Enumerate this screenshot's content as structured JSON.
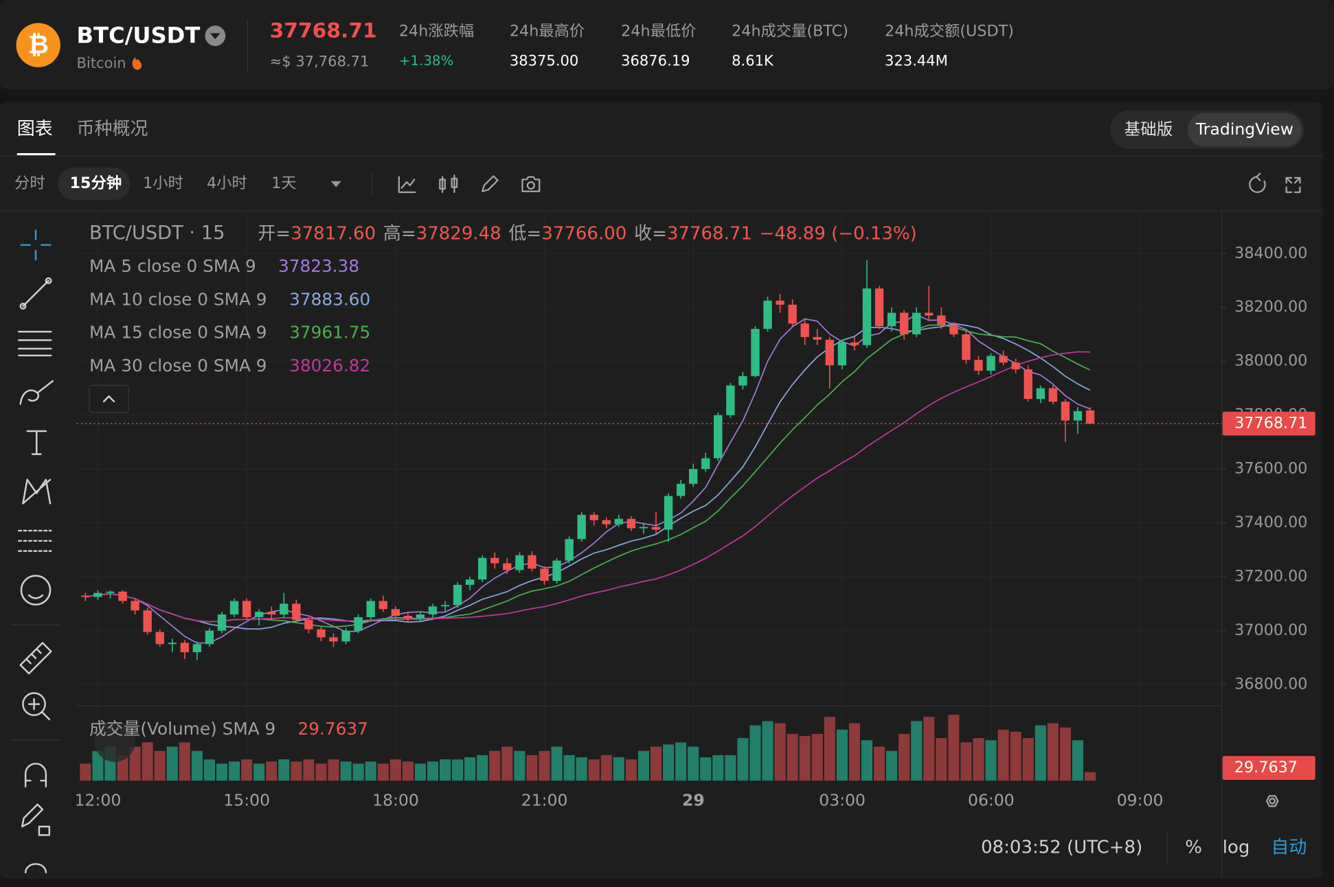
{
  "header": {
    "logo": "₿",
    "symbol": "BTC/USDT",
    "name": "Bitcoin",
    "price": "37768.71",
    "price_usd": "≈$ 37,768.71",
    "stats": [
      {
        "label": "24h涨跌幅",
        "value": "+1.38%"
      },
      {
        "label": "24h最高价",
        "value": "38375.00"
      },
      {
        "label": "24h最低价",
        "value": "36876.19"
      },
      {
        "label": "24h成交量(BTC)",
        "value": "8.61K"
      },
      {
        "label": "24h成交额(USDT)",
        "value": "323.44M"
      }
    ]
  },
  "tabs": [
    "图表",
    "币种概况"
  ],
  "views": [
    "基础版",
    "TradingView"
  ],
  "intervals": [
    "分时",
    "15分钟",
    "1小时",
    "4小时",
    "1天"
  ],
  "footer": {
    "time": "08:03:52 (UTC+8)",
    "percent": "%",
    "log": "log",
    "auto": "自动"
  },
  "chart_data": {
    "type": "candlestick",
    "symbol_label": "BTC/USDT · 15",
    "ohlc_prefixes": [
      "开=",
      "高=",
      "低=",
      "收="
    ],
    "last_labels": [
      "37817.60",
      "37829.48",
      "37766.00",
      "37768.71"
    ],
    "change_label": "−48.89 (−0.13%)",
    "ma": [
      {
        "name": "MA 5 close 0 SMA 9",
        "period": 5,
        "color": "#a07ad8",
        "value": "37823.38"
      },
      {
        "name": "MA 10 close 0 SMA 9",
        "period": 10,
        "color": "#8aa8e0",
        "value": "37883.60"
      },
      {
        "name": "MA 15 close 0 SMA 9",
        "period": 15,
        "color": "#4caf50",
        "value": "37961.75"
      },
      {
        "name": "MA 30 close 0 SMA 9",
        "period": 30,
        "color": "#c2389e",
        "value": "38026.82"
      }
    ],
    "volume_label": "成交量(Volume) SMA 9",
    "volume_sma": 29.7637,
    "up_color": "#2ebd85",
    "down_color": "#ef5350",
    "up_volume_color": "#22806a",
    "down_volume_color": "#8e3a3a",
    "grid": true,
    "ylim": [
      36721,
      38558
    ],
    "yticks": [
      {
        "value": 38400,
        "label": "38400.00"
      },
      {
        "value": 38200,
        "label": "38200.00"
      },
      {
        "value": 38000,
        "label": "38000.00"
      },
      {
        "value": 37800,
        "label": "37800.00"
      },
      {
        "value": 37600,
        "label": "37600.00"
      },
      {
        "value": 37400,
        "label": "37400.00"
      },
      {
        "value": 37200,
        "label": "37200.00"
      },
      {
        "value": 37000,
        "label": "37000.00"
      },
      {
        "value": 36800,
        "label": "36800.00"
      }
    ],
    "vlim": [
      0,
      160
    ],
    "xtick_labels": [
      "12:00",
      "15:00",
      "18:00",
      "21:00",
      "29",
      "03:00",
      "06:00",
      "09:00"
    ],
    "candles": [
      [
        37130,
        37140,
        37110,
        37125
      ],
      [
        37125,
        37150,
        37115,
        37140
      ],
      [
        37140,
        37150,
        37120,
        37145
      ],
      [
        37145,
        37150,
        37100,
        37110
      ],
      [
        37110,
        37120,
        37060,
        37075
      ],
      [
        37075,
        37085,
        36985,
        36995
      ],
      [
        36995,
        37005,
        36940,
        36950
      ],
      [
        36950,
        36970,
        36920,
        36955
      ],
      [
        36955,
        36965,
        36895,
        36920
      ],
      [
        36920,
        36960,
        36890,
        36950
      ],
      [
        36950,
        37010,
        36940,
        37000
      ],
      [
        37000,
        37070,
        36990,
        37060
      ],
      [
        37060,
        37120,
        37050,
        37110
      ],
      [
        37110,
        37120,
        37040,
        37050
      ],
      [
        37050,
        37080,
        37020,
        37070
      ],
      [
        37070,
        37090,
        37040,
        37060
      ],
      [
        37060,
        37140,
        37050,
        37100
      ],
      [
        37100,
        37115,
        37030,
        37040
      ],
      [
        37040,
        37050,
        36990,
        37005
      ],
      [
        37005,
        37015,
        36960,
        36975
      ],
      [
        36975,
        36990,
        36940,
        36960
      ],
      [
        36960,
        37010,
        36950,
        37000
      ],
      [
        37000,
        37060,
        36990,
        37050
      ],
      [
        37050,
        37120,
        37040,
        37110
      ],
      [
        37110,
        37130,
        37070,
        37080
      ],
      [
        37080,
        37090,
        37040,
        37055
      ],
      [
        37055,
        37070,
        37030,
        37045
      ],
      [
        37045,
        37070,
        37035,
        37060
      ],
      [
        37060,
        37100,
        37050,
        37090
      ],
      [
        37090,
        37110,
        37070,
        37095
      ],
      [
        37095,
        37180,
        37085,
        37170
      ],
      [
        37170,
        37200,
        37150,
        37190
      ],
      [
        37190,
        37280,
        37180,
        37270
      ],
      [
        37270,
        37290,
        37230,
        37250
      ],
      [
        37250,
        37270,
        37210,
        37225
      ],
      [
        37225,
        37290,
        37215,
        37280
      ],
      [
        37280,
        37295,
        37220,
        37230
      ],
      [
        37230,
        37240,
        37170,
        37185
      ],
      [
        37185,
        37270,
        37175,
        37260
      ],
      [
        37260,
        37350,
        37250,
        37340
      ],
      [
        37340,
        37440,
        37330,
        37430
      ],
      [
        37430,
        37440,
        37390,
        37410
      ],
      [
        37410,
        37420,
        37380,
        37395
      ],
      [
        37395,
        37430,
        37385,
        37415
      ],
      [
        37415,
        37425,
        37370,
        37380
      ],
      [
        37380,
        37400,
        37360,
        37385
      ],
      [
        37385,
        37440,
        37360,
        37375
      ],
      [
        37375,
        37510,
        37330,
        37500
      ],
      [
        37500,
        37560,
        37490,
        37545
      ],
      [
        37545,
        37620,
        37535,
        37600
      ],
      [
        37600,
        37660,
        37590,
        37640
      ],
      [
        37640,
        37810,
        37630,
        37800
      ],
      [
        37800,
        37920,
        37790,
        37910
      ],
      [
        37910,
        37960,
        37895,
        37945
      ],
      [
        37945,
        38130,
        37940,
        38120
      ],
      [
        38120,
        38240,
        38110,
        38225
      ],
      [
        38225,
        38250,
        38180,
        38210
      ],
      [
        38210,
        38230,
        38130,
        38140
      ],
      [
        38140,
        38160,
        38060,
        38090
      ],
      [
        38090,
        38120,
        38060,
        38080
      ],
      [
        38080,
        38090,
        37900,
        37985
      ],
      [
        37985,
        38080,
        37970,
        38070
      ],
      [
        38070,
        38090,
        38040,
        38060
      ],
      [
        38060,
        38375,
        38050,
        38270
      ],
      [
        38270,
        38280,
        38120,
        38130
      ],
      [
        38130,
        38200,
        38110,
        38180
      ],
      [
        38180,
        38190,
        38080,
        38100
      ],
      [
        38100,
        38200,
        38090,
        38180
      ],
      [
        38180,
        38280,
        38150,
        38170
      ],
      [
        38170,
        38200,
        38120,
        38135
      ],
      [
        38135,
        38145,
        38090,
        38100
      ],
      [
        38100,
        38110,
        37990,
        38005
      ],
      [
        38005,
        38020,
        37950,
        37965
      ],
      [
        37965,
        38030,
        37950,
        38020
      ],
      [
        38020,
        38040,
        37985,
        37995
      ],
      [
        37995,
        38010,
        37955,
        37970
      ],
      [
        37970,
        37985,
        37850,
        37860
      ],
      [
        37860,
        37910,
        37845,
        37900
      ],
      [
        37900,
        37910,
        37840,
        37850
      ],
      [
        37850,
        37860,
        37700,
        37780
      ],
      [
        37780,
        37830,
        37730,
        37815
      ],
      [
        37817.6,
        37829.48,
        37766,
        37768.71
      ]
    ],
    "volumes": [
      40,
      70,
      80,
      60,
      80,
      90,
      70,
      80,
      90,
      70,
      50,
      40,
      45,
      50,
      40,
      45,
      50,
      45,
      50,
      40,
      50,
      45,
      40,
      45,
      40,
      50,
      45,
      40,
      45,
      50,
      50,
      55,
      60,
      70,
      80,
      70,
      60,
      70,
      80,
      60,
      55,
      50,
      60,
      55,
      50,
      70,
      80,
      85,
      90,
      80,
      55,
      60,
      60,
      100,
      130,
      140,
      135,
      110,
      105,
      110,
      150,
      120,
      135,
      95,
      80,
      70,
      110,
      140,
      150,
      100,
      155,
      90,
      100,
      95,
      120,
      115,
      100,
      130,
      135,
      125,
      95,
      20
    ]
  }
}
